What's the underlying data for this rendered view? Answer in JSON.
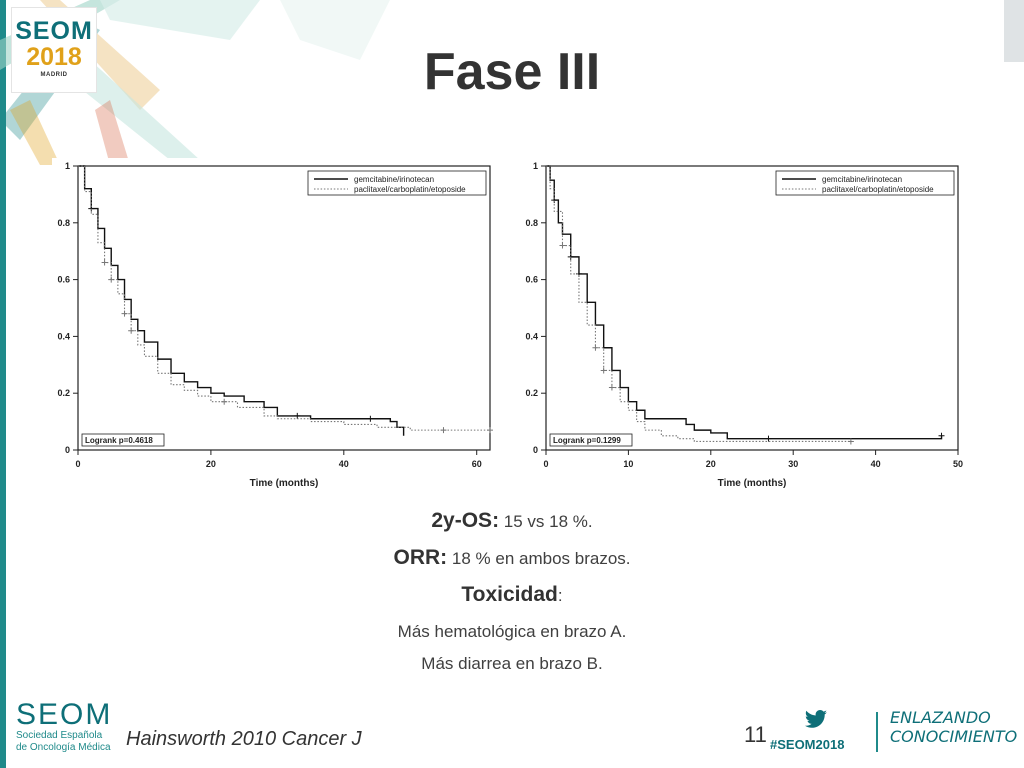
{
  "slide": {
    "title": "Fase III",
    "event_logo": {
      "line1": "SEOM",
      "line2": "2018",
      "line3": "MADRID"
    },
    "footer": {
      "org_logo": {
        "name": "SEOM",
        "line1": "Sociedad Española",
        "line2": "de Oncología Médica"
      },
      "citation": "Hainsworth 2010 Cancer J",
      "page_number": "11",
      "hashtag": "#SEOM2018",
      "slogan": {
        "line1": "ENLAZANDO",
        "line2": "CONOCIMIENTO"
      }
    },
    "icons": [
      "twitter-bird-icon"
    ]
  },
  "bullets": [
    {
      "label": "2y-OS:",
      "text": " 15 vs 18 %."
    },
    {
      "label": "ORR:",
      "text": " 18 % en ambos brazos."
    },
    {
      "label": "Toxicidad",
      "text": ":"
    }
  ],
  "sub_bullets": [
    "Más hematológica en brazo A.",
    "Más diarrea en brazo B."
  ],
  "colors": {
    "accent": "#1f8a8a",
    "brand": "#0e6f78",
    "gold": "#e0a11a",
    "series_a": "#111111",
    "series_b": "#777777"
  },
  "chart_data": [
    {
      "type": "line",
      "id": "left",
      "xlabel": "Time (months)",
      "ylabel": "",
      "xlim": [
        0,
        62
      ],
      "ylim": [
        0,
        1
      ],
      "xticks": [
        0,
        20,
        40,
        60
      ],
      "yticks": [
        0,
        0.2,
        0.4,
        0.6,
        0.8,
        1
      ],
      "annotation": "Logrank p=0.4618",
      "legend_position": "top-right",
      "series": [
        {
          "name": "gemcitabine/irinotecan",
          "style": "solid",
          "x": [
            0,
            1,
            2,
            3,
            4,
            5,
            6,
            7,
            8,
            9,
            10,
            12,
            14,
            16,
            18,
            20,
            22,
            25,
            28,
            30,
            35,
            40,
            45,
            47,
            48,
            49
          ],
          "y": [
            1,
            0.92,
            0.85,
            0.78,
            0.71,
            0.65,
            0.6,
            0.53,
            0.46,
            0.42,
            0.38,
            0.32,
            0.27,
            0.24,
            0.22,
            0.2,
            0.19,
            0.17,
            0.15,
            0.12,
            0.11,
            0.11,
            0.11,
            0.1,
            0.08,
            0.05
          ],
          "censor_x": [
            2,
            33,
            44
          ]
        },
        {
          "name": "paclitaxel/carboplatin/etoposide",
          "style": "dotted",
          "x": [
            0,
            1,
            2,
            3,
            4,
            5,
            6,
            7,
            8,
            9,
            10,
            12,
            14,
            16,
            18,
            20,
            24,
            28,
            30,
            35,
            40,
            45,
            50,
            62
          ],
          "y": [
            1,
            0.91,
            0.83,
            0.73,
            0.66,
            0.6,
            0.55,
            0.48,
            0.42,
            0.37,
            0.33,
            0.27,
            0.23,
            0.21,
            0.19,
            0.17,
            0.15,
            0.12,
            0.11,
            0.1,
            0.09,
            0.08,
            0.07,
            0.07
          ],
          "censor_x": [
            4,
            5,
            7,
            8,
            22,
            55,
            62
          ]
        }
      ]
    },
    {
      "type": "line",
      "id": "right",
      "xlabel": "Time (months)",
      "ylabel": "",
      "xlim": [
        0,
        50
      ],
      "ylim": [
        0,
        1
      ],
      "xticks": [
        0,
        10,
        20,
        30,
        40,
        50
      ],
      "yticks": [
        0,
        0.2,
        0.4,
        0.6,
        0.8,
        1
      ],
      "annotation": "Logrank p=0.1299",
      "legend_position": "top-right",
      "series": [
        {
          "name": "gemcitabine/irinotecan",
          "style": "solid",
          "x": [
            0,
            0.5,
            1,
            1.5,
            2,
            3,
            4,
            5,
            6,
            7,
            8,
            9,
            10,
            11,
            12,
            14,
            16,
            17,
            18,
            20,
            22,
            27,
            30,
            40,
            48
          ],
          "y": [
            1,
            0.95,
            0.88,
            0.8,
            0.76,
            0.68,
            0.62,
            0.52,
            0.44,
            0.36,
            0.28,
            0.22,
            0.17,
            0.14,
            0.11,
            0.11,
            0.11,
            0.09,
            0.07,
            0.06,
            0.04,
            0.04,
            0.04,
            0.04,
            0.05
          ],
          "censor_x": [
            1,
            3,
            4,
            27,
            48
          ]
        },
        {
          "name": "paclitaxel/carboplatin/etoposide",
          "style": "dotted",
          "x": [
            0,
            0.5,
            1,
            2,
            3,
            4,
            5,
            6,
            7,
            8,
            9,
            10,
            11,
            12,
            14,
            16,
            18,
            20,
            25,
            30,
            37
          ],
          "y": [
            1,
            0.92,
            0.84,
            0.72,
            0.62,
            0.52,
            0.44,
            0.36,
            0.28,
            0.22,
            0.17,
            0.14,
            0.1,
            0.07,
            0.05,
            0.04,
            0.03,
            0.03,
            0.03,
            0.03,
            0.03
          ],
          "censor_x": [
            2,
            6,
            7,
            8,
            37
          ]
        }
      ]
    }
  ]
}
